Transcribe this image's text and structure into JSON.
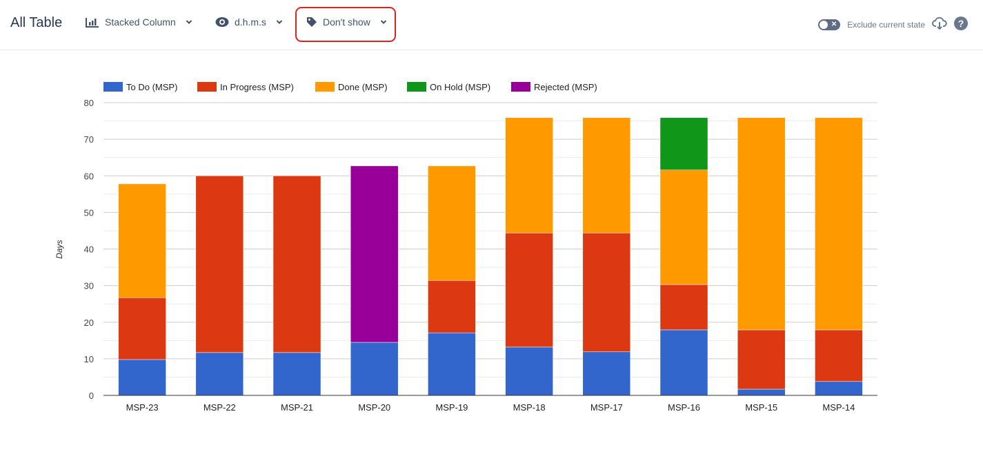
{
  "header": {
    "title": "All Table",
    "chart_type_label": "Stacked Column",
    "time_format_label": "d.h.m.s",
    "label_option": "Don't show",
    "exclude_toggle_label": "Exclude current state",
    "exclude_toggle_on": false,
    "icons": [
      "bar-chart-icon",
      "eye-icon",
      "tag-icon",
      "chevron-down-icon",
      "cloud-download-icon",
      "help-icon"
    ]
  },
  "chart_data": {
    "type": "bar",
    "stacked": true,
    "title": "",
    "xlabel": "",
    "ylabel": "Days",
    "ylim": [
      0,
      80
    ],
    "yticks": [
      0,
      10,
      20,
      30,
      40,
      50,
      60,
      70,
      80
    ],
    "grid": true,
    "legend_position": "top-left",
    "categories": [
      "MSP-23",
      "MSP-22",
      "MSP-21",
      "MSP-20",
      "MSP-19",
      "MSP-18",
      "MSP-17",
      "MSP-16",
      "MSP-15",
      "MSP-14"
    ],
    "series": [
      {
        "name": "To Do (MSP)",
        "color": "#3366cc",
        "values": [
          9.8,
          11.7,
          11.7,
          14.5,
          17.1,
          13.2,
          11.9,
          17.9,
          1.7,
          3.8
        ]
      },
      {
        "name": "In Progress (MSP)",
        "color": "#dc3912",
        "values": [
          16.9,
          48.3,
          48.3,
          0,
          14.3,
          31.2,
          32.5,
          12.4,
          16.2,
          14.1
        ]
      },
      {
        "name": "Done (MSP)",
        "color": "#ff9900",
        "values": [
          31.1,
          0,
          0,
          0,
          31.3,
          31.5,
          31.5,
          31.3,
          58.0,
          58.0
        ]
      },
      {
        "name": "On Hold (MSP)",
        "color": "#109618",
        "values": [
          0,
          0,
          0,
          0,
          0,
          0,
          0,
          14.3,
          0,
          0
        ]
      },
      {
        "name": "Rejected (MSP)",
        "color": "#990099",
        "values": [
          0,
          0,
          0,
          48.2,
          0,
          0,
          0,
          0,
          0,
          0
        ]
      }
    ]
  }
}
